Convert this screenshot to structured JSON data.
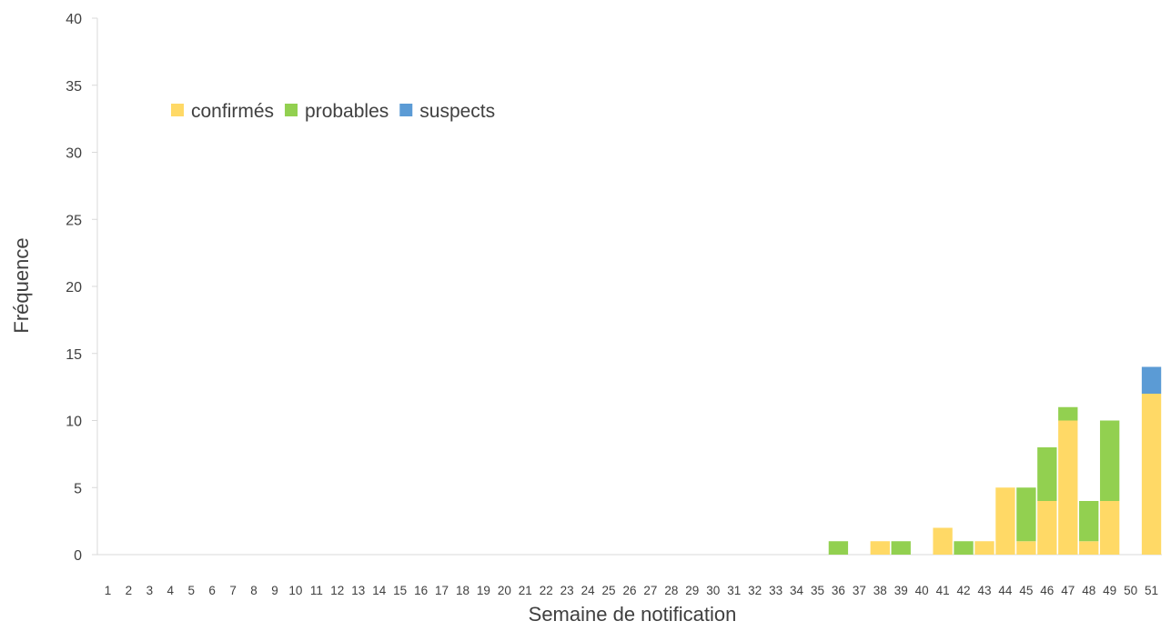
{
  "chart_data": {
    "type": "bar",
    "stacked": true,
    "title": "",
    "xlabel": "Semaine de notification",
    "ylabel": "Fréquence",
    "ylim": [
      0,
      40
    ],
    "yticks": [
      0,
      5,
      10,
      15,
      20,
      25,
      30,
      35,
      40
    ],
    "grid": false,
    "legend_position": "top-left",
    "categories": [
      "1",
      "2",
      "3",
      "4",
      "5",
      "6",
      "7",
      "8",
      "9",
      "10",
      "11",
      "12",
      "13",
      "14",
      "15",
      "16",
      "17",
      "18",
      "19",
      "20",
      "21",
      "22",
      "23",
      "24",
      "25",
      "26",
      "27",
      "28",
      "29",
      "30",
      "31",
      "32",
      "33",
      "34",
      "35",
      "36",
      "37",
      "38",
      "39",
      "40",
      "41",
      "42",
      "43",
      "44",
      "45",
      "46",
      "47",
      "48",
      "49",
      "50",
      "51"
    ],
    "series": [
      {
        "name": "confirmés",
        "color": "#ffd966",
        "values": [
          0,
          0,
          0,
          0,
          0,
          0,
          0,
          0,
          0,
          0,
          0,
          0,
          0,
          0,
          0,
          0,
          0,
          0,
          0,
          0,
          0,
          0,
          0,
          0,
          0,
          0,
          0,
          0,
          0,
          0,
          0,
          0,
          0,
          0,
          0,
          0,
          0,
          1,
          0,
          0,
          2,
          0,
          1,
          5,
          1,
          4,
          10,
          1,
          4,
          0,
          12
        ]
      },
      {
        "name": "probables",
        "color": "#92d050",
        "values": [
          0,
          0,
          0,
          0,
          0,
          0,
          0,
          0,
          0,
          0,
          0,
          0,
          0,
          0,
          0,
          0,
          0,
          0,
          0,
          0,
          0,
          0,
          0,
          0,
          0,
          0,
          0,
          0,
          0,
          0,
          0,
          0,
          0,
          0,
          0,
          1,
          0,
          0,
          1,
          0,
          0,
          1,
          0,
          0,
          4,
          4,
          1,
          3,
          6,
          0,
          0
        ]
      },
      {
        "name": "suspects",
        "color": "#5b9bd5",
        "values": [
          0,
          0,
          0,
          0,
          0,
          0,
          0,
          0,
          0,
          0,
          0,
          0,
          0,
          0,
          0,
          0,
          0,
          0,
          0,
          0,
          0,
          0,
          0,
          0,
          0,
          0,
          0,
          0,
          0,
          0,
          0,
          0,
          0,
          0,
          0,
          0,
          0,
          0,
          0,
          0,
          0,
          0,
          0,
          0,
          0,
          0,
          0,
          0,
          0,
          0,
          2
        ]
      }
    ]
  }
}
